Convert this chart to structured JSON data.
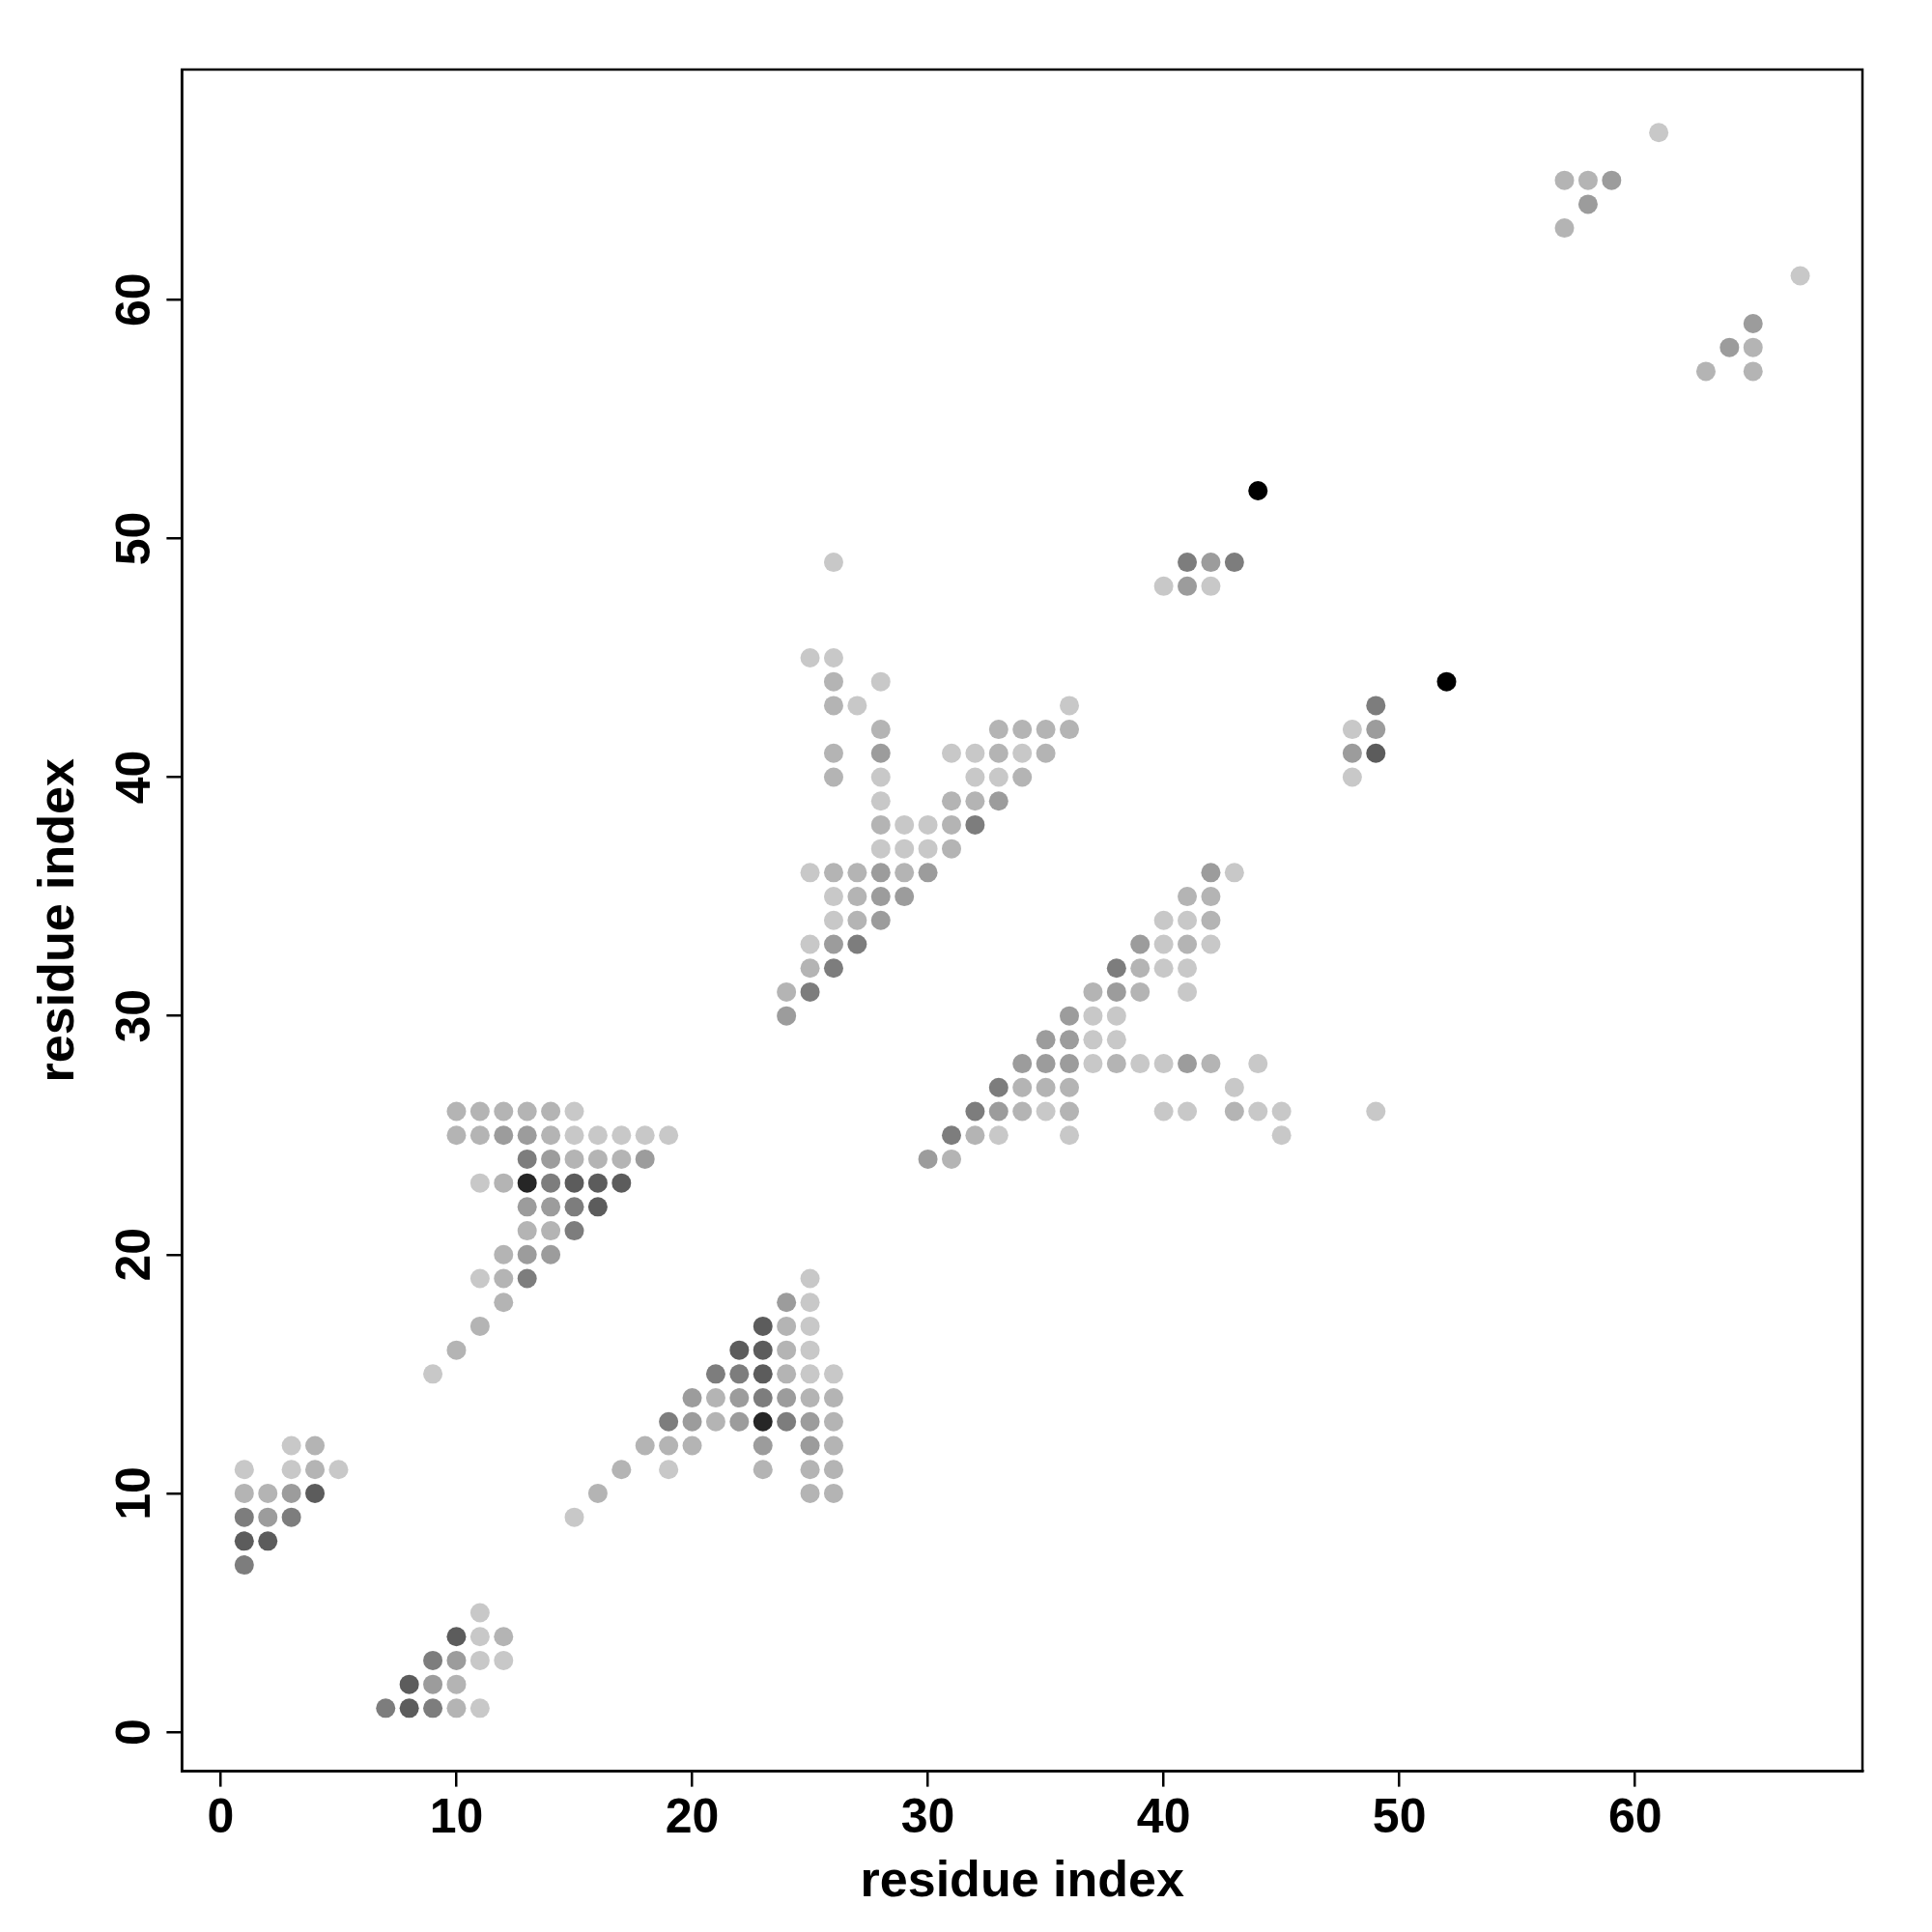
{
  "chart_data": {
    "type": "scatter",
    "xlabel": "residue index",
    "ylabel": "residue index",
    "xlim": [
      -1.64,
      69.64
    ],
    "ylim": [
      -1.64,
      69.64
    ],
    "xticks": [
      0,
      10,
      20,
      30,
      40,
      50,
      60
    ],
    "yticks": [
      0,
      10,
      20,
      30,
      40,
      50,
      60
    ],
    "grid": false,
    "legend": false,
    "marker": "circle",
    "series": [
      {
        "color": "#c8c8c8",
        "x": [
          3,
          1,
          3,
          5,
          11,
          11,
          11,
          12,
          11,
          15,
          15,
          16,
          17,
          18,
          19,
          11,
          11,
          9,
          25,
          25,
          25,
          25,
          25,
          26,
          19,
          15,
          26,
          25,
          26,
          28,
          27,
          36,
          31,
          32,
          34,
          28,
          32,
          33,
          28,
          29,
          30,
          28,
          29,
          30,
          25,
          26,
          26,
          25,
          40,
          42,
          48,
          48,
          43,
          40,
          41,
          40,
          42,
          40,
          41,
          41,
          37,
          38,
          37,
          38,
          37,
          39,
          40,
          44,
          43,
          35,
          40,
          41,
          44,
          45,
          49,
          33,
          36,
          45,
          61,
          67
        ],
        "values": [
          12,
          11,
          11,
          11,
          5,
          4,
          3,
          3,
          1,
          26,
          25,
          25,
          25,
          25,
          25,
          23,
          19,
          15,
          19,
          18,
          17,
          16,
          15,
          15,
          11,
          9,
          49,
          45,
          45,
          44,
          43,
          43,
          41,
          41,
          41,
          40,
          40,
          40,
          39,
          38,
          38,
          37,
          37,
          37,
          36,
          35,
          34,
          33,
          48,
          48,
          42,
          40,
          36,
          34,
          34,
          33,
          33,
          32,
          32,
          31,
          30,
          30,
          29,
          29,
          28,
          28,
          28,
          28,
          27,
          26,
          26,
          26,
          26,
          26,
          26,
          25,
          25,
          25,
          67,
          61
        ]
      },
      {
        "color": "#b4b4b4",
        "x": [
          4,
          4,
          1,
          2,
          12,
          10,
          10,
          10,
          11,
          12,
          13,
          14,
          10,
          11,
          14,
          15,
          16,
          17,
          12,
          13,
          14,
          12,
          12,
          12,
          11,
          10,
          24,
          24,
          24,
          21,
          25,
          26,
          21,
          26,
          18,
          19,
          20,
          26,
          17,
          23,
          25,
          26,
          16,
          25,
          26,
          26,
          26,
          28,
          33,
          34,
          35,
          36,
          26,
          33,
          35,
          26,
          34,
          31,
          32,
          28,
          31,
          31,
          26,
          27,
          29,
          27,
          27,
          25,
          24,
          41,
          42,
          42,
          41,
          39,
          37,
          39,
          38,
          42,
          34,
          35,
          36,
          34,
          36,
          43,
          32,
          31,
          57,
          58,
          57,
          65,
          63,
          65
        ],
        "values": [
          12,
          11,
          10,
          10,
          4,
          2,
          1,
          26,
          26,
          26,
          26,
          26,
          25,
          25,
          25,
          24,
          24,
          24,
          23,
          21,
          21,
          20,
          19,
          18,
          17,
          16,
          17,
          16,
          15,
          14,
          14,
          14,
          13,
          13,
          12,
          12,
          12,
          12,
          11,
          11,
          11,
          11,
          10,
          10,
          10,
          44,
          43,
          42,
          42,
          42,
          42,
          42,
          41,
          41,
          41,
          40,
          40,
          39,
          39,
          38,
          38,
          37,
          36,
          36,
          36,
          35,
          34,
          32,
          31,
          35,
          35,
          34,
          33,
          32,
          31,
          31,
          28,
          28,
          27,
          27,
          27,
          26,
          26,
          26,
          25,
          24,
          65,
          65,
          63,
          58,
          57,
          57
        ]
      },
      {
        "color": "#9c9c9c",
        "x": [
          3,
          2,
          10,
          9,
          12,
          13,
          14,
          18,
          13,
          14,
          13,
          14,
          24,
          20,
          22,
          24,
          20,
          22,
          25,
          23,
          25,
          28,
          33,
          28,
          30,
          28,
          29,
          28,
          26,
          24,
          42,
          41,
          49,
          48,
          42,
          39,
          38,
          36,
          35,
          36,
          34,
          35,
          36,
          41,
          33,
          30,
          59,
          58,
          65,
          64
        ],
        "values": [
          10,
          9,
          3,
          2,
          25,
          25,
          24,
          24,
          22,
          22,
          20,
          20,
          18,
          14,
          14,
          14,
          13,
          13,
          13,
          12,
          12,
          41,
          39,
          36,
          36,
          35,
          35,
          34,
          33,
          30,
          49,
          48,
          42,
          41,
          36,
          33,
          31,
          30,
          29,
          29,
          28,
          28,
          28,
          28,
          26,
          24,
          65,
          64,
          59,
          58
        ]
      },
      {
        "color": "#7d7d7d",
        "x": [
          1,
          3,
          1,
          9,
          7,
          9,
          13,
          14,
          15,
          15,
          13,
          21,
          22,
          23,
          19,
          24,
          32,
          27,
          26,
          25,
          41,
          43,
          49,
          38,
          33,
          32,
          31
        ],
        "values": [
          9,
          9,
          7,
          3,
          1,
          1,
          24,
          23,
          22,
          21,
          19,
          15,
          15,
          14,
          13,
          13,
          38,
          33,
          32,
          31,
          49,
          49,
          43,
          32,
          27,
          26,
          25
        ]
      },
      {
        "color": "#5c5c5c",
        "x": [
          4,
          1,
          2,
          10,
          8,
          8,
          15,
          16,
          17,
          16,
          23,
          22,
          23,
          23,
          49
        ],
        "values": [
          10,
          8,
          8,
          4,
          2,
          1,
          23,
          23,
          23,
          22,
          17,
          16,
          16,
          15,
          41
        ]
      },
      {
        "color": "#262626",
        "x": [
          13,
          23
        ],
        "values": [
          23,
          13
        ]
      },
      {
        "color": "#000000",
        "x": [
          44,
          52
        ],
        "values": [
          52,
          44
        ]
      }
    ]
  }
}
